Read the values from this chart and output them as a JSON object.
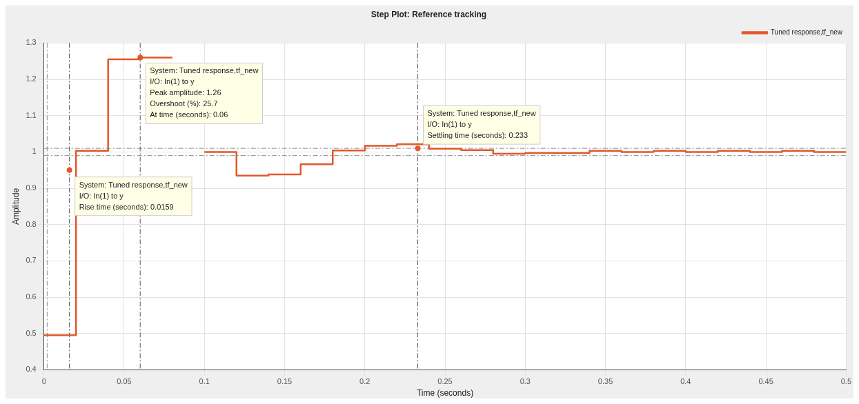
{
  "chart_data": {
    "type": "step",
    "title": "Step Plot: Reference tracking",
    "xlabel": "Time (seconds)",
    "ylabel": "Amplitude",
    "x": [
      0,
      0.02,
      0.04,
      0.06,
      0.08,
      0.1,
      0.12,
      0.14,
      0.16,
      0.18,
      0.2,
      0.22,
      0.24,
      0.26,
      0.28,
      0.3,
      0.32,
      0.34,
      0.36,
      0.38,
      0.4,
      0.42,
      0.44,
      0.46,
      0.48,
      0.5
    ],
    "series": [
      {
        "name": "Tuned response,tf_new",
        "color": "#e2582a",
        "values": [
          0.495,
          1.003,
          1.255,
          1.26,
          null,
          1.0,
          0.935,
          0.938,
          0.966,
          1.004,
          1.017,
          1.021,
          1.009,
          1.005,
          0.995,
          0.997,
          0.997,
          1.003,
          1.0,
          1.003,
          1.0,
          1.003,
          1.0,
          1.003,
          1.0,
          1.0
        ]
      }
    ],
    "xlim": [
      0,
      0.5
    ],
    "xticks": [
      0,
      0.05,
      0.1,
      0.15,
      0.2,
      0.25,
      0.3,
      0.35,
      0.4,
      0.45,
      0.5
    ],
    "ylim": [
      0.4,
      1.3
    ],
    "yticks": [
      0.4,
      0.5,
      0.6,
      0.7,
      0.8,
      0.9,
      1,
      1.1,
      1.2,
      1.3
    ],
    "grid": true,
    "legend": "top right",
    "marker": "none",
    "line_style": "solid",
    "ref_lines": [
      {
        "axis": "y",
        "value": 1.01,
        "color": "#888888",
        "line_style": "dashdot"
      },
      {
        "axis": "y",
        "value": 0.99,
        "color": "#888888",
        "line_style": "dashdot"
      },
      {
        "axis": "x",
        "value": 0.002,
        "color": "#888888",
        "line_style": "dashdot"
      },
      {
        "axis": "x",
        "value": 0.0159,
        "color": "#555555",
        "line_style": "dashdot"
      },
      {
        "axis": "x",
        "value": 0.06,
        "color": "#555555",
        "line_style": "dashdot"
      },
      {
        "axis": "x",
        "value": 0.233,
        "color": "#555555",
        "line_style": "dashdot"
      }
    ],
    "annotations": [
      {
        "text": "System: Tuned response,tf_new\nI/O: In(1) to y\nRise time (seconds): 0.0159",
        "x": 0.0159,
        "y": 0.95
      },
      {
        "text": "System: Tuned response,tf_new\nI/O: In(1) to y\nPeak amplitude: 1.26\nOvershoot (%): 25.7\nAt time (seconds): 0.06",
        "x": 0.06,
        "y": 1.26
      },
      {
        "text": "System: Tuned response,tf_new\nI/O: In(1) to y\nSettling time (seconds): 0.233",
        "x": 0.233,
        "y": 1.01
      }
    ]
  }
}
